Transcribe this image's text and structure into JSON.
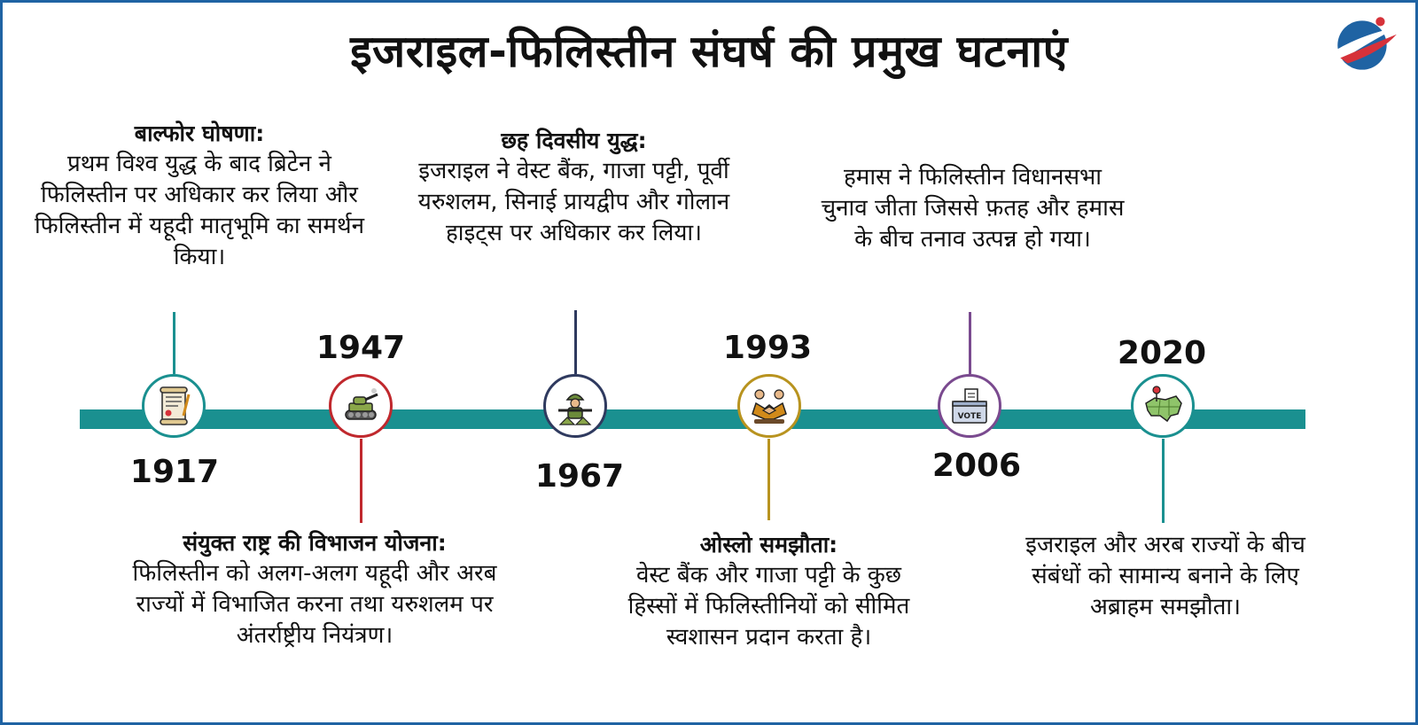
{
  "title": "इजराइल-फिलिस्तीन संघर्ष की प्रमुख घटनाएं",
  "colors": {
    "frame": "#1f63a3",
    "track": "#1a9090",
    "e1917": "#1a9090",
    "e1947": "#c0282d",
    "e1967": "#2f3a5f",
    "e1993": "#b8931f",
    "e2006": "#7a4a8f",
    "e2020": "#1a9090"
  },
  "logo": {
    "icon": "globe-swoosh-logo-icon"
  },
  "events": [
    {
      "year": "1917",
      "heading": "बाल्फोर घोषणा:",
      "text": "प्रथम विश्व युद्ध के बाद ब्रिटेन ने फिलिस्तीन पर अधिकार कर लिया और फिलिस्तीन में यहूदी मातृभूमि का समर्थन किया।",
      "icon": "scroll-document-icon"
    },
    {
      "year": "1947",
      "heading": "संयुक्त राष्ट्र की विभाजन योजना:",
      "text": "फिलिस्तीन को अलग-अलग यहूदी और अरब राज्यों में विभाजित करना तथा यरुशलम पर अंतर्राष्ट्रीय नियंत्रण।",
      "icon": "tank-icon"
    },
    {
      "year": "1967",
      "heading": "छह दिवसीय युद्ध:",
      "text": "इजराइल ने वेस्ट बैंक, गाजा पट्टी, पूर्वी यरुशलम, सिनाई प्रायद्वीप और गोलान हाइट्स पर अधिकार कर लिया।",
      "icon": "soldier-icon"
    },
    {
      "year": "1993",
      "heading": "ओस्लो समझौता:",
      "text": "वेस्ट बैंक और गाजा पट्टी के कुछ हिस्सों में फिलिस्तीनियों को सीमित स्वशासन प्रदान करता है।",
      "icon": "handshake-icon"
    },
    {
      "year": "2006",
      "heading": "",
      "text": "हमास ने फिलिस्तीन विधानसभा चुनाव जीता जिससे फ़तह और हमास के बीच तनाव उत्पन्न हो गया।",
      "icon": "vote-box-icon",
      "vote_label": "VOTE"
    },
    {
      "year": "2020",
      "heading": "",
      "text": "इजराइल और अरब राज्यों के बीच संबंधों को सामान्य बनाने के लिए अब्राहम समझौता।",
      "icon": "map-pin-icon"
    }
  ]
}
